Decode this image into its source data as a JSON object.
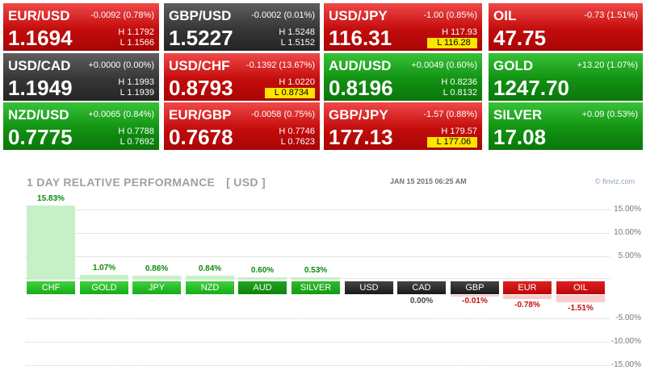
{
  "tiles": [
    {
      "symbol": "EUR/USD",
      "change": "-0.0092 (0.78%)",
      "price": "1.1694",
      "high": "H 1.1792",
      "low": "L 1.1566",
      "color": "red",
      "mark": ""
    },
    {
      "symbol": "GBP/USD",
      "change": "-0.0002 (0.01%)",
      "price": "1.5227",
      "high": "H 1.5248",
      "low": "L 1.5152",
      "color": "dark",
      "mark": ""
    },
    {
      "symbol": "USD/JPY",
      "change": "-1.00 (0.85%)",
      "price": "116.31",
      "high": "H 117.93",
      "low": "L 116.28",
      "color": "red",
      "mark": "low"
    },
    {
      "symbol": "OIL",
      "change": "-0.73 (1.51%)",
      "price": "47.75",
      "high": "",
      "low": "",
      "color": "red",
      "mark": ""
    },
    {
      "symbol": "USD/CAD",
      "change": "+0.0000 (0.00%)",
      "price": "1.1949",
      "high": "H 1.1993",
      "low": "L 1.1939",
      "color": "dark",
      "mark": ""
    },
    {
      "symbol": "USD/CHF",
      "change": "-0.1392 (13.67%)",
      "price": "0.8793",
      "high": "H 1.0220",
      "low": "L 0.8734",
      "color": "red",
      "mark": "low"
    },
    {
      "symbol": "AUD/USD",
      "change": "+0.0049 (0.60%)",
      "price": "0.8196",
      "high": "H 0.8236",
      "low": "L 0.8132",
      "color": "green",
      "mark": ""
    },
    {
      "symbol": "GOLD",
      "change": "+13.20 (1.07%)",
      "price": "1247.70",
      "high": "",
      "low": "",
      "color": "green",
      "mark": ""
    },
    {
      "symbol": "NZD/USD",
      "change": "+0.0065 (0.84%)",
      "price": "0.7775",
      "high": "H 0.7788",
      "low": "L 0.7692",
      "color": "green",
      "mark": ""
    },
    {
      "symbol": "EUR/GBP",
      "change": "-0.0058 (0.75%)",
      "price": "0.7678",
      "high": "H 0.7746",
      "low": "L 0.7623",
      "color": "red",
      "mark": ""
    },
    {
      "symbol": "GBP/JPY",
      "change": "-1.57 (0.88%)",
      "price": "177.13",
      "high": "H 179.57",
      "low": "L 177.06",
      "color": "red",
      "mark": "low"
    },
    {
      "symbol": "SILVER",
      "change": "+0.09 (0.53%)",
      "price": "17.08",
      "high": "",
      "low": "",
      "color": "green",
      "mark": ""
    }
  ],
  "performance": {
    "title": "1 DAY RELATIVE PERFORMANCE",
    "unit": "[ USD ]",
    "date": "JAN 15 2015 06:25 AM",
    "brand": "© finviz.com"
  },
  "colors": {
    "red": "#c40c0c",
    "green": "#129212",
    "dark": "#363636",
    "highlight": "#ffe400",
    "positive_text": "#0d8a0d",
    "negative_text": "#c41010"
  },
  "chart_data": {
    "type": "bar",
    "title": "1 DAY RELATIVE PERFORMANCE",
    "categories": [
      "CHF",
      "GOLD",
      "JPY",
      "NZD",
      "AUD",
      "SILVER",
      "USD",
      "CAD",
      "GBP",
      "EUR",
      "OIL"
    ],
    "values": [
      15.83,
      1.07,
      0.86,
      0.84,
      0.6,
      0.53,
      0.0,
      0.0,
      -0.01,
      -0.78,
      -1.51
    ],
    "value_labels": [
      "15.83%",
      "1.07%",
      "0.86%",
      "0.84%",
      "0.60%",
      "0.53%",
      "",
      "0.00%",
      "-0.01%",
      "-0.78%",
      "-1.51%"
    ],
    "category_colors": [
      "g-bright",
      "g-bright",
      "g-bright",
      "g-bright",
      "g-dark",
      "g-mid",
      "gray",
      "gray",
      "gray",
      "r",
      "r"
    ],
    "yticks": [
      15,
      10,
      5,
      -5,
      -10,
      -15
    ],
    "ytick_labels": [
      "15.00%",
      "10.00%",
      "5.00%",
      "-5.00%",
      "-10.00%",
      "-15.00%"
    ],
    "ylim": [
      -15,
      15
    ],
    "grid": true,
    "xlabel": "",
    "ylabel": ""
  }
}
